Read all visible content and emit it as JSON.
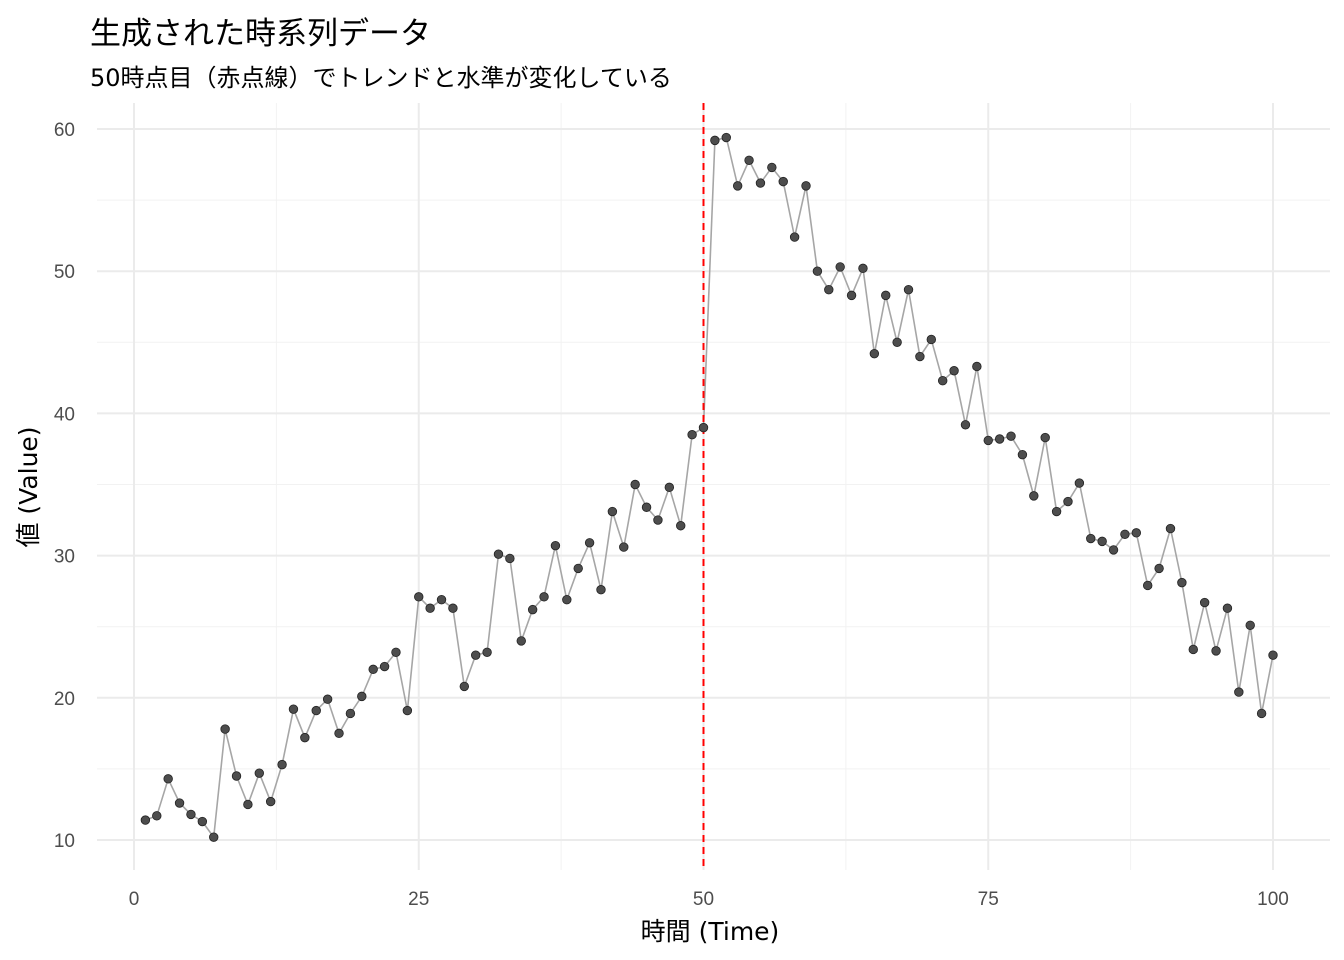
{
  "chart_data": {
    "type": "line",
    "title": "生成された時系列データ",
    "subtitle": "50時点目（赤点線）でトレンドと水準が変化している",
    "xlabel": "時間 (Time)",
    "ylabel": "値 (Value)",
    "xlim": [
      0,
      100
    ],
    "ylim": [
      10,
      60
    ],
    "xticks": [
      0,
      25,
      50,
      75,
      100
    ],
    "yticks": [
      10,
      20,
      30,
      40,
      50,
      60
    ],
    "grid": true,
    "vline": {
      "x": 50,
      "color": "#ff0000",
      "style": "dashed"
    },
    "line_color": "#a6a6a6",
    "point_color": "#4d4d4d",
    "x": [
      1,
      2,
      3,
      4,
      5,
      6,
      7,
      8,
      9,
      10,
      11,
      12,
      13,
      14,
      15,
      16,
      17,
      18,
      19,
      20,
      21,
      22,
      23,
      24,
      25,
      26,
      27,
      28,
      29,
      30,
      31,
      32,
      33,
      34,
      35,
      36,
      37,
      38,
      39,
      40,
      41,
      42,
      43,
      44,
      45,
      46,
      47,
      48,
      49,
      50,
      51,
      52,
      53,
      54,
      55,
      56,
      57,
      58,
      59,
      60,
      61,
      62,
      63,
      64,
      65,
      66,
      67,
      68,
      69,
      70,
      71,
      72,
      73,
      74,
      75,
      76,
      77,
      78,
      79,
      80,
      81,
      82,
      83,
      84,
      85,
      86,
      87,
      88,
      89,
      90,
      91,
      92,
      93,
      94,
      95,
      96,
      97,
      98,
      99,
      100
    ],
    "y": [
      11.4,
      11.7,
      14.3,
      12.6,
      11.8,
      11.3,
      10.2,
      17.8,
      14.5,
      12.5,
      14.7,
      12.7,
      15.3,
      19.2,
      17.2,
      19.1,
      19.9,
      17.5,
      18.9,
      20.1,
      22.0,
      22.2,
      23.2,
      19.1,
      27.1,
      26.3,
      26.9,
      26.3,
      20.8,
      23.0,
      23.2,
      30.1,
      29.8,
      24.0,
      26.2,
      27.1,
      30.7,
      26.9,
      29.1,
      30.9,
      27.6,
      33.1,
      30.6,
      35.0,
      33.4,
      32.5,
      34.8,
      32.1,
      38.5,
      39.0,
      59.2,
      59.4,
      56.0,
      57.8,
      56.2,
      57.3,
      56.3,
      52.4,
      56.0,
      50.0,
      48.7,
      50.3,
      48.3,
      50.2,
      44.2,
      48.3,
      45.0,
      48.7,
      44.0,
      45.2,
      42.3,
      43.0,
      39.2,
      43.3,
      38.1,
      38.2,
      38.4,
      37.1,
      34.2,
      38.3,
      33.1,
      33.8,
      35.1,
      31.2,
      31.0,
      30.4,
      31.5,
      31.6,
      27.9,
      29.1,
      31.9,
      28.1,
      23.4,
      26.7,
      23.3,
      26.3,
      20.4,
      25.1,
      18.9,
      23.0
    ]
  }
}
